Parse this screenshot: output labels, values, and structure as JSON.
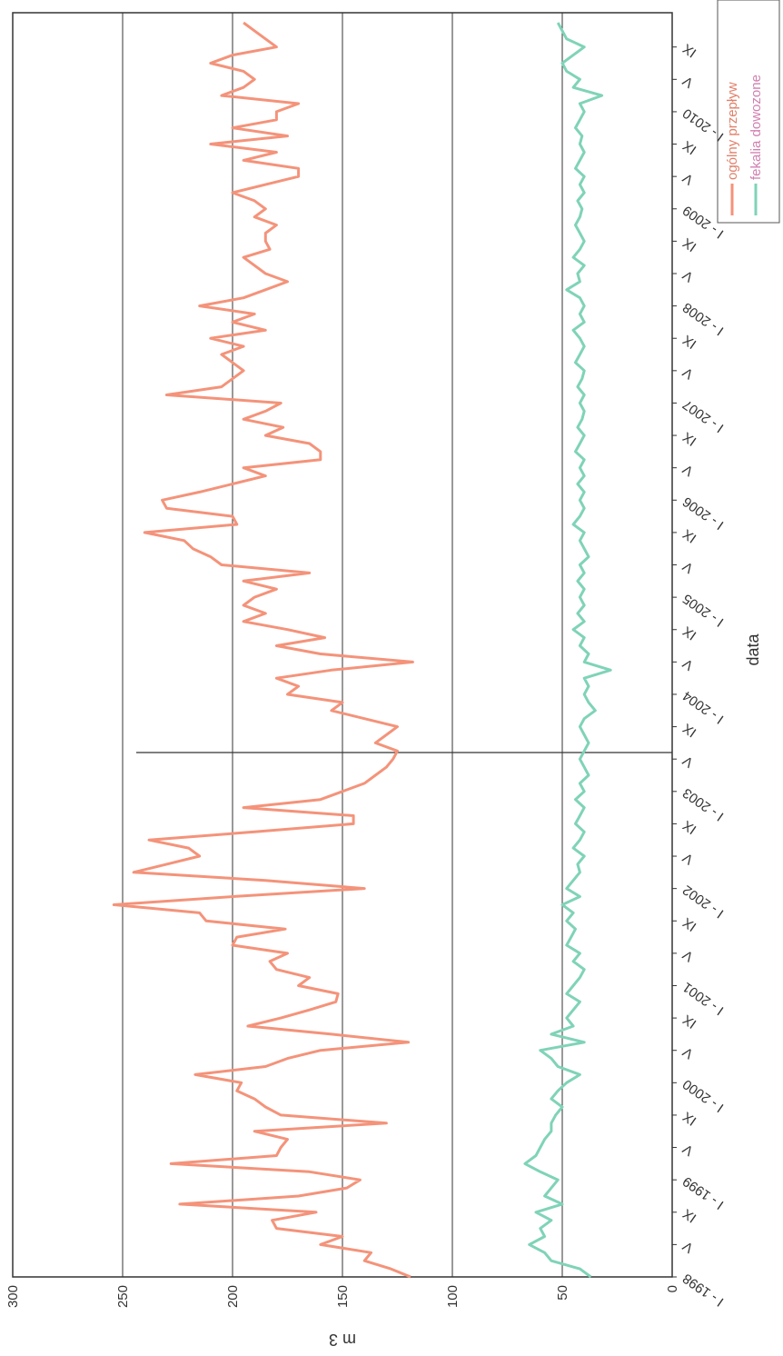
{
  "chart_data": {
    "type": "line",
    "x_label": "data",
    "y_label": "m 3",
    "categories": [
      "I - 1998",
      null,
      null,
      null,
      "V",
      null,
      null,
      null,
      "IX",
      null,
      null,
      null,
      "I - 1999",
      null,
      null,
      null,
      "V",
      null,
      null,
      null,
      "IX",
      null,
      null,
      null,
      "I - 2000",
      null,
      null,
      null,
      "V",
      null,
      null,
      null,
      "IX",
      null,
      null,
      null,
      "I - 2001",
      null,
      null,
      null,
      "V",
      null,
      null,
      null,
      "IX",
      null,
      null,
      null,
      "I - 2002",
      null,
      null,
      null,
      "V",
      null,
      null,
      null,
      "IX",
      null,
      null,
      null,
      "I - 2003",
      null,
      null,
      null,
      "V",
      null,
      null,
      null,
      "IX",
      null,
      null,
      null,
      "I - 2004",
      null,
      null,
      null,
      "V",
      null,
      null,
      null,
      "IX",
      null,
      null,
      null,
      "I - 2005",
      null,
      null,
      null,
      "V",
      null,
      null,
      null,
      "IX",
      null,
      null,
      null,
      "I - 2006",
      null,
      null,
      null,
      "V",
      null,
      null,
      null,
      "IX",
      null,
      null,
      null,
      "I - 2007",
      null,
      null,
      null,
      "V",
      null,
      null,
      null,
      "IX",
      null,
      null,
      null,
      "I - 2008",
      null,
      null,
      null,
      "V",
      null,
      null,
      null,
      "IX",
      null,
      null,
      null,
      "I - 2009",
      null,
      null,
      null,
      "V",
      null,
      null,
      null,
      "IX",
      null,
      null,
      null,
      "I - 2010",
      null,
      null,
      null,
      "V",
      null,
      null,
      null,
      "IX",
      null,
      null,
      null
    ],
    "series": [
      {
        "name": "ogólny przepływ",
        "color": "#f4937a",
        "values": [
          119,
          128,
          140,
          137,
          160,
          150,
          180,
          182,
          162,
          224,
          170,
          148,
          142,
          165,
          228,
          180,
          178,
          175,
          190,
          130,
          178,
          185,
          190,
          198,
          196,
          217,
          185,
          175,
          160,
          120,
          155,
          193,
          178,
          165,
          153,
          152,
          170,
          165,
          180,
          183,
          175,
          200,
          198,
          176,
          212,
          215,
          254,
          200,
          140,
          185,
          245,
          230,
          215,
          220,
          238,
          190,
          145,
          145,
          195,
          160,
          150,
          140,
          135,
          130,
          127,
          125,
          135,
          130,
          125,
          140,
          155,
          150,
          175,
          170,
          180,
          155,
          118,
          160,
          180,
          158,
          175,
          195,
          185,
          195,
          190,
          180,
          195,
          165,
          205,
          210,
          218,
          222,
          240,
          198,
          200,
          230,
          232,
          215,
          200,
          185,
          195,
          160,
          160,
          165,
          185,
          177,
          195,
          185,
          178,
          230,
          205,
          200,
          195,
          200,
          205,
          195,
          210,
          185,
          200,
          190,
          215,
          195,
          185,
          175,
          185,
          190,
          195,
          183,
          185,
          185,
          180,
          190,
          185,
          190,
          200,
          185,
          170,
          170,
          195,
          180,
          210,
          175,
          200,
          180,
          180,
          170,
          205,
          195,
          190,
          195,
          210,
          200,
          180,
          185,
          190,
          195
        ]
      },
      {
        "name": "fekalia dowozone",
        "color": "#7fd3b8",
        "values": [
          37,
          42,
          55,
          58,
          65,
          58,
          60,
          55,
          62,
          50,
          58,
          55,
          52,
          60,
          67,
          62,
          60,
          58,
          55,
          55,
          53,
          50,
          55,
          52,
          48,
          42,
          52,
          55,
          60,
          40,
          55,
          45,
          48,
          45,
          42,
          48,
          45,
          42,
          40,
          45,
          42,
          48,
          46,
          44,
          48,
          45,
          50,
          42,
          48,
          45,
          42,
          43,
          40,
          45,
          42,
          40,
          44,
          42,
          40,
          44,
          40,
          42,
          38,
          40,
          42,
          40,
          38,
          40,
          42,
          40,
          35,
          38,
          40,
          38,
          40,
          28,
          40,
          38,
          42,
          40,
          45,
          40,
          43,
          40,
          42,
          40,
          43,
          40,
          42,
          38,
          40,
          42,
          40,
          45,
          42,
          40,
          42,
          40,
          43,
          40,
          42,
          40,
          44,
          42,
          40,
          43,
          41,
          40,
          42,
          40,
          43,
          41,
          40,
          44,
          42,
          40,
          42,
          45,
          40,
          42,
          40,
          42,
          48,
          42,
          43,
          40,
          45,
          42,
          40,
          42,
          44,
          42,
          41,
          43,
          40,
          42,
          40,
          44,
          42,
          40,
          42,
          41,
          44,
          42,
          40,
          42,
          32,
          45,
          42,
          48,
          50,
          45,
          40,
          48,
          50,
          52
        ]
      }
    ],
    "ylim": [
      0,
      300
    ],
    "yticks": [
      0,
      50,
      100,
      150,
      200,
      250,
      300
    ],
    "grid": true,
    "legend": "top-right"
  }
}
